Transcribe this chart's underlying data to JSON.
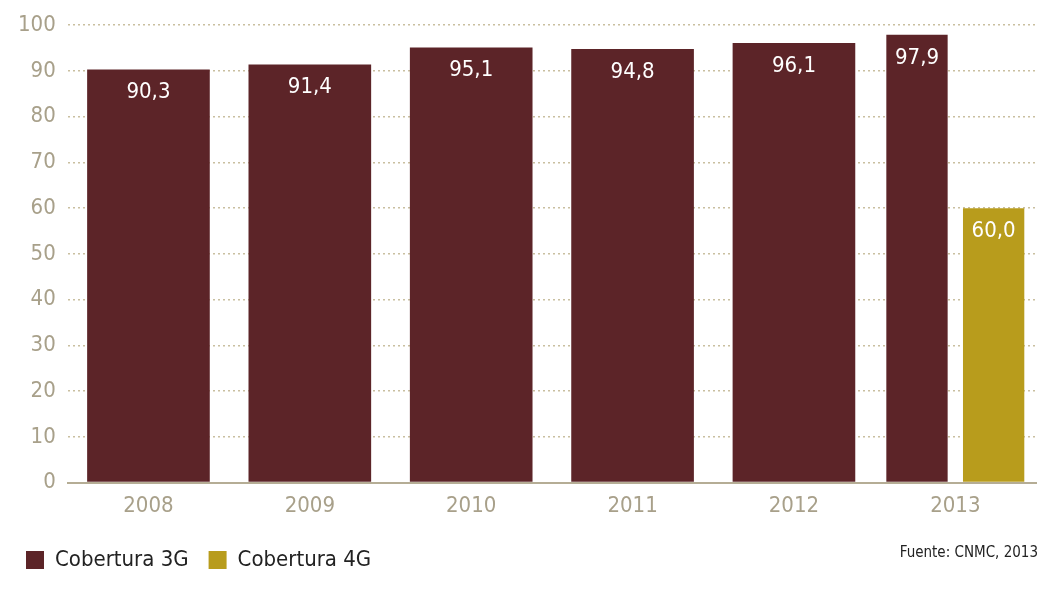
{
  "chart_data": {
    "type": "bar",
    "categories": [
      "2008",
      "2009",
      "2010",
      "2011",
      "2012",
      "2013"
    ],
    "series": [
      {
        "name": "Cobertura 3G",
        "color": "#5c2428",
        "values": [
          90.3,
          91.4,
          95.1,
          94.8,
          96.1,
          97.9
        ],
        "value_labels": [
          "90,3",
          "91,4",
          "95,1",
          "94,8",
          "96,1",
          "97,9"
        ]
      },
      {
        "name": "Cobertura 4G",
        "color": "#b89c1c",
        "values": [
          null,
          null,
          null,
          null,
          null,
          60.0
        ],
        "value_labels": [
          null,
          null,
          null,
          null,
          null,
          "60,0"
        ]
      }
    ],
    "ylim": [
      0,
      100
    ],
    "yticks": [
      0,
      10,
      20,
      30,
      40,
      50,
      60,
      70,
      80,
      90,
      100
    ],
    "grid": "y",
    "legend": "bottom left",
    "annotations": [
      "Fuente: CNMC, 2013"
    ]
  }
}
